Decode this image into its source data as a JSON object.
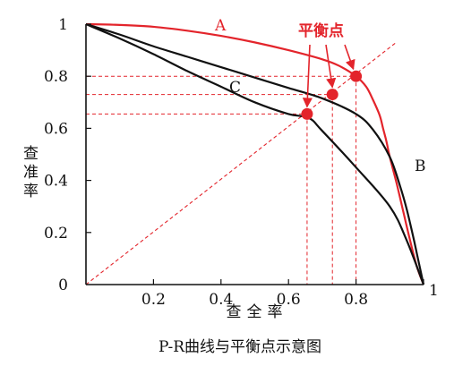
{
  "chart_data": {
    "type": "line",
    "caption": "P-R曲线与平衡点示意图",
    "xlabel": "查全率",
    "ylabel": "查准率",
    "xlim": [
      0,
      1
    ],
    "ylim": [
      0,
      1
    ],
    "x_ticks": [
      "0",
      "0.2",
      "0.4",
      "0.6",
      "0.8",
      "1"
    ],
    "y_ticks": [
      "0",
      "0.2",
      "0.4",
      "0.6",
      "0.8",
      "1"
    ],
    "grid": false,
    "annotation": "平衡点",
    "colors": {
      "A": "#e3242b",
      "B": "#111111",
      "C": "#111111",
      "reference": "#e3242b",
      "break_even": "#e3242b"
    },
    "series": [
      {
        "name": "A",
        "x": [
          0,
          0.1,
          0.2,
          0.3,
          0.4,
          0.5,
          0.6,
          0.7,
          0.75,
          0.8,
          0.83,
          0.85,
          0.87,
          0.88,
          0.89,
          0.9,
          0.92,
          0.94,
          0.96,
          0.98,
          1.0
        ],
        "y": [
          1,
          0.997,
          0.99,
          0.975,
          0.955,
          0.93,
          0.9,
          0.865,
          0.84,
          0.8,
          0.76,
          0.71,
          0.65,
          0.6,
          0.55,
          0.49,
          0.39,
          0.28,
          0.17,
          0.07,
          0
        ]
      },
      {
        "name": "B",
        "x": [
          0,
          0.1,
          0.2,
          0.3,
          0.4,
          0.5,
          0.6,
          0.7,
          0.8,
          0.85,
          0.9,
          0.93,
          0.95,
          0.97,
          0.98,
          0.99,
          1.0
        ],
        "y": [
          1,
          0.96,
          0.915,
          0.875,
          0.835,
          0.795,
          0.755,
          0.715,
          0.655,
          0.595,
          0.49,
          0.38,
          0.29,
          0.18,
          0.12,
          0.06,
          0
        ]
      },
      {
        "name": "C",
        "x": [
          0,
          0.1,
          0.2,
          0.3,
          0.4,
          0.5,
          0.6,
          0.66,
          0.7,
          0.8,
          0.9,
          0.95,
          1.0
        ],
        "y": [
          1,
          0.945,
          0.885,
          0.82,
          0.76,
          0.7,
          0.655,
          0.64,
          0.59,
          0.45,
          0.3,
          0.17,
          0
        ]
      }
    ],
    "reference_line": {
      "x": [
        0,
        1
      ],
      "y": [
        0,
        1
      ]
    },
    "break_even_points": [
      {
        "x": 0.8,
        "y": 0.8
      },
      {
        "x": 0.73,
        "y": 0.73
      },
      {
        "x": 0.655,
        "y": 0.655
      }
    ]
  }
}
